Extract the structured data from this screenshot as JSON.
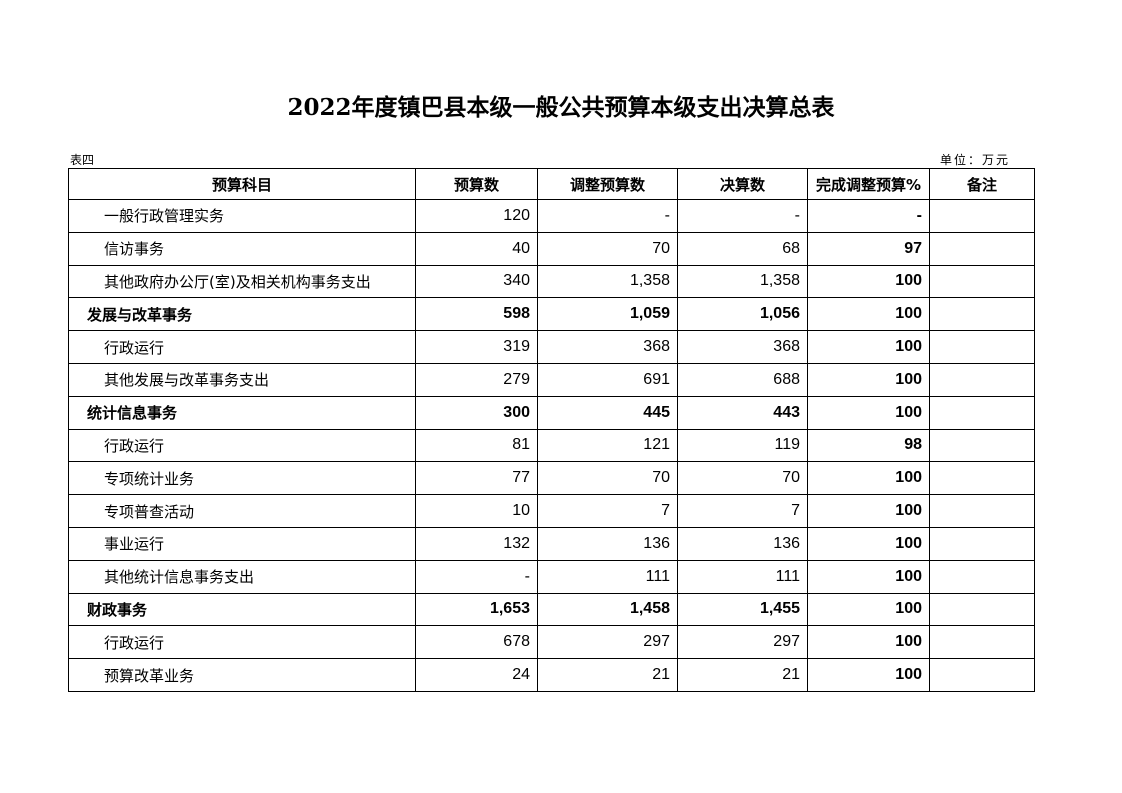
{
  "title": "2022年度镇巴县本级一般公共预算本级支出决算总表",
  "table_label": "表四",
  "unit": "单位：万元",
  "headers": [
    "预算科目",
    "预算数",
    "调整预算数",
    "决算数",
    "完成调整预算%",
    "备注"
  ],
  "rows": [
    {
      "name": "一般行政管理实务",
      "budget": "120",
      "adjusted": "-",
      "final": "-",
      "pct": "-",
      "note": "",
      "bold": false
    },
    {
      "name": "信访事务",
      "budget": "40",
      "adjusted": "70",
      "final": "68",
      "pct": "97",
      "note": "",
      "bold": false
    },
    {
      "name": "其他政府办公厅(室)及相关机构事务支出",
      "budget": "340",
      "adjusted": "1,358",
      "final": "1,358",
      "pct": "100",
      "note": "",
      "bold": false
    },
    {
      "name": "发展与改革事务",
      "budget": "598",
      "adjusted": "1,059",
      "final": "1,056",
      "pct": "100",
      "note": "",
      "bold": true
    },
    {
      "name": "行政运行",
      "budget": "319",
      "adjusted": "368",
      "final": "368",
      "pct": "100",
      "note": "",
      "bold": false
    },
    {
      "name": "其他发展与改革事务支出",
      "budget": "279",
      "adjusted": "691",
      "final": "688",
      "pct": "100",
      "note": "",
      "bold": false
    },
    {
      "name": "统计信息事务",
      "budget": "300",
      "adjusted": "445",
      "final": "443",
      "pct": "100",
      "note": "",
      "bold": true
    },
    {
      "name": "行政运行",
      "budget": "81",
      "adjusted": "121",
      "final": "119",
      "pct": "98",
      "note": "",
      "bold": false
    },
    {
      "name": "专项统计业务",
      "budget": "77",
      "adjusted": "70",
      "final": "70",
      "pct": "100",
      "note": "",
      "bold": false
    },
    {
      "name": "专项普查活动",
      "budget": "10",
      "adjusted": "7",
      "final": "7",
      "pct": "100",
      "note": "",
      "bold": false
    },
    {
      "name": "事业运行",
      "budget": "132",
      "adjusted": "136",
      "final": "136",
      "pct": "100",
      "note": "",
      "bold": false
    },
    {
      "name": "其他统计信息事务支出",
      "budget": "-",
      "adjusted": "111",
      "final": "111",
      "pct": "100",
      "note": "",
      "bold": false
    },
    {
      "name": "财政事务",
      "budget": "1,653",
      "adjusted": "1,458",
      "final": "1,455",
      "pct": "100",
      "note": "",
      "bold": true
    },
    {
      "name": "行政运行",
      "budget": "678",
      "adjusted": "297",
      "final": "297",
      "pct": "100",
      "note": "",
      "bold": false
    },
    {
      "name": "预算改革业务",
      "budget": "24",
      "adjusted": "21",
      "final": "21",
      "pct": "100",
      "note": "",
      "bold": false
    }
  ]
}
